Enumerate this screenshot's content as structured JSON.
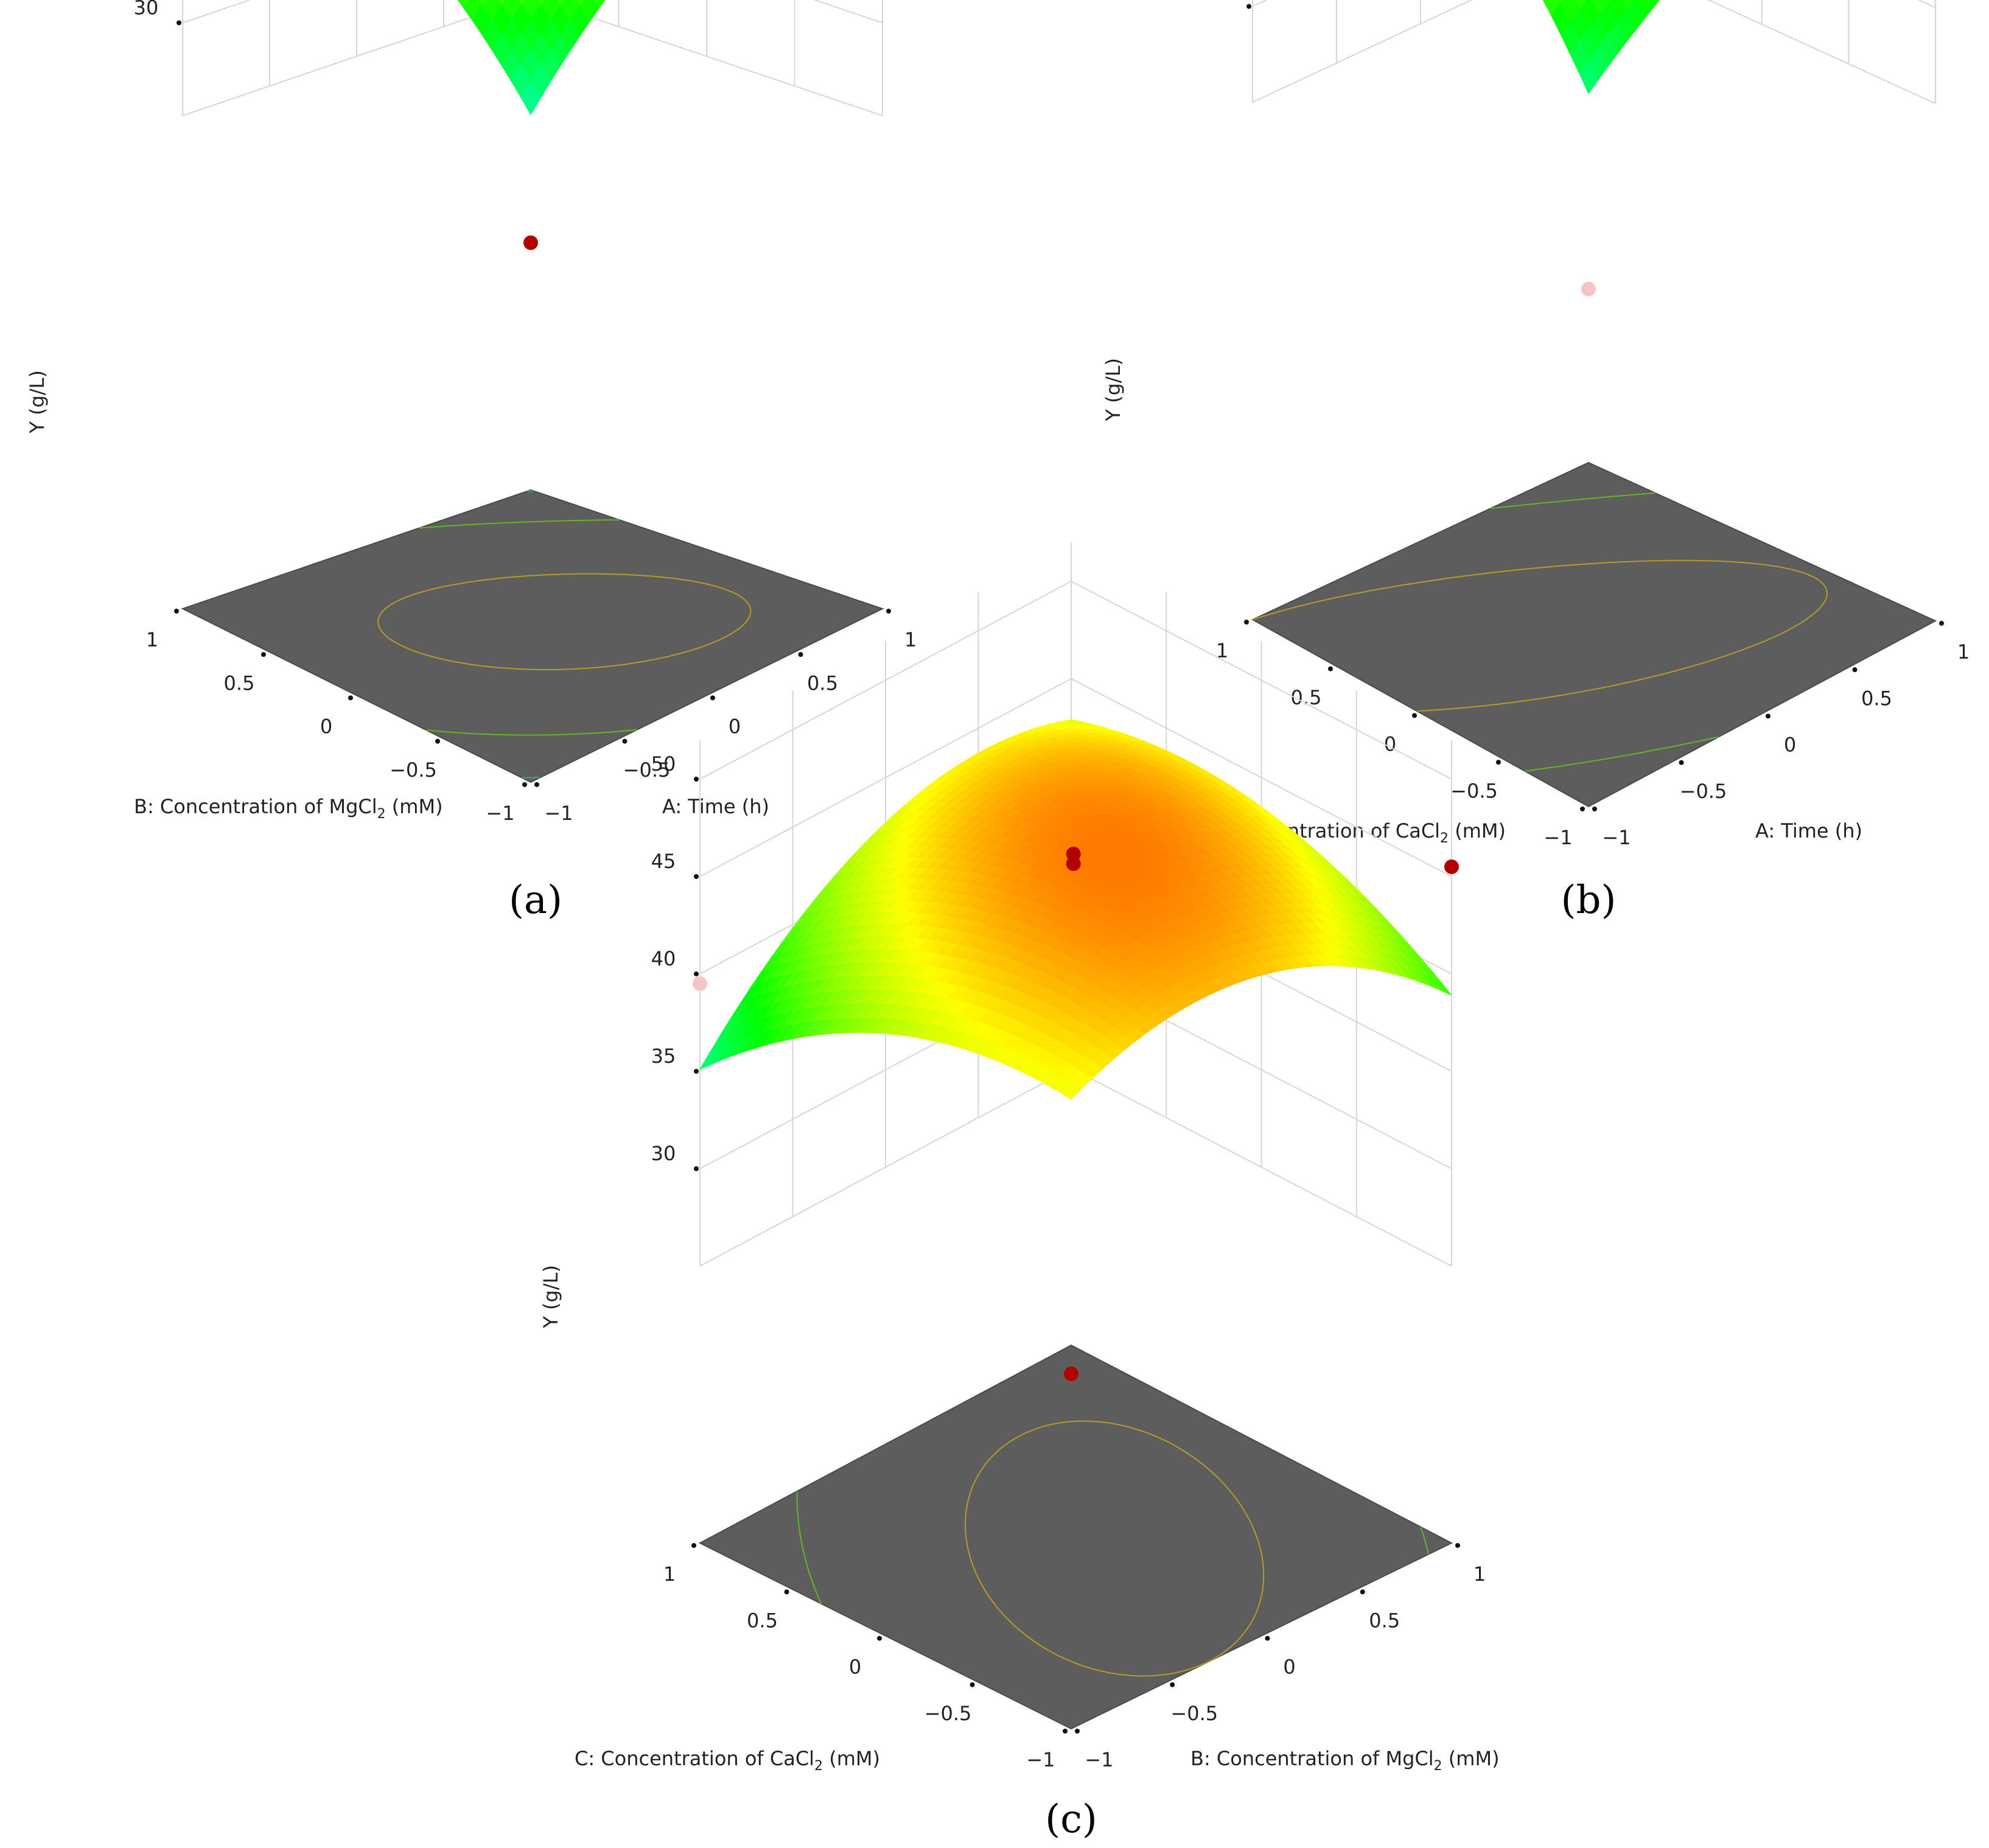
{
  "chart_data": [
    {
      "type": "surface",
      "panel_label": "(a)",
      "x_axis_label": "A: Time (h)",
      "y_axis_label": "B: Concentration of MgCl",
      "y_axis_label_sub": "2",
      "y_axis_label_unit": " (mM)",
      "z_axis_label": "Y (g/L)",
      "z_ticks": [
        "30",
        "35",
        "40",
        "45",
        "50"
      ],
      "x_ticks": [
        "−1",
        "−0.5",
        "0",
        "0.5",
        "1"
      ],
      "y_ticks": [
        "−1",
        "−0.5",
        "0",
        "0.5",
        "1"
      ],
      "zlim": [
        25,
        50
      ],
      "xlim": [
        -1,
        1
      ],
      "ylim": [
        -1,
        1
      ],
      "model": {
        "b0": 46.2,
        "bx": 0.3,
        "by": -0.5,
        "bxy": -3.6,
        "bxx": -4.3,
        "byy": -3.7
      },
      "design_points": [
        {
          "x": 0,
          "y": 0,
          "z": 45.9,
          "color": "#b30000"
        },
        {
          "x": 0,
          "y": 0,
          "z": 45.4,
          "color": "#b30000"
        },
        {
          "x": 1,
          "y": 1,
          "z": 27.5,
          "color": "#b30000"
        },
        {
          "x": 1,
          "y": -1,
          "z": 36.5,
          "color": "#b30000"
        },
        {
          "x": -1,
          "y": 1,
          "z": 39.3,
          "color": "#f6c4c4"
        }
      ]
    },
    {
      "type": "surface",
      "panel_label": "(b)",
      "x_axis_label": "A: Time (h)",
      "y_axis_label": "C: Concentration of CaCl",
      "y_axis_label_sub": "2",
      "y_axis_label_unit": " (mM)",
      "z_axis_label": "Y (g/L)",
      "z_ticks": [
        "30",
        "35",
        "40",
        "45",
        "50"
      ],
      "x_ticks": [
        "−1",
        "−0.5",
        "0",
        "0.5",
        "1"
      ],
      "y_ticks": [
        "−1",
        "−0.5",
        "0",
        "0.5",
        "1"
      ],
      "zlim": [
        25,
        50
      ],
      "xlim": [
        -1,
        1
      ],
      "ylim": [
        -1,
        1
      ],
      "model": {
        "b0": 46.5,
        "bx": -0.6,
        "by": 0.4,
        "bxy": -4.3,
        "bxx": -4.8,
        "byy": -2.0
      },
      "design_points": [
        {
          "x": 0,
          "y": 0,
          "z": 46.0,
          "color": "#b30000"
        },
        {
          "x": 0,
          "y": 0,
          "z": 45.5,
          "color": "#b30000"
        },
        {
          "x": 1,
          "y": 1,
          "z": 25.0,
          "color": "#f6c4c4"
        },
        {
          "x": -1,
          "y": 1,
          "z": 41.2,
          "color": "#b30000"
        },
        {
          "x": 1,
          "y": -1,
          "z": 38.5,
          "color": "#f6c4c4"
        }
      ]
    },
    {
      "type": "surface",
      "panel_label": "(c)",
      "x_axis_label": "B: Concentration of MgCl",
      "x_axis_label_sub": "2",
      "x_axis_label_unit": " (mM)",
      "y_axis_label": "C: Concentration of CaCl",
      "y_axis_label_sub": "2",
      "y_axis_label_unit": " (mM)",
      "z_axis_label": "Y (g/L)",
      "z_ticks": [
        "30",
        "35",
        "40",
        "45",
        "50"
      ],
      "x_ticks": [
        "−1",
        "−0.5",
        "0",
        "0.5",
        "1"
      ],
      "y_ticks": [
        "−1",
        "−0.5",
        "0",
        "0.5",
        "1"
      ],
      "zlim": [
        25,
        50
      ],
      "xlim": [
        -1,
        1
      ],
      "ylim": [
        -1,
        1
      ],
      "model": {
        "b0": 46.3,
        "bx": 1.0,
        "by": -0.9,
        "bxy": 3.0,
        "bxx": -2.6,
        "byy": -3.7
      },
      "design_points": [
        {
          "x": 0,
          "y": 0,
          "z": 46.0,
          "color": "#b30000"
        },
        {
          "x": 0,
          "y": 0,
          "z": 45.5,
          "color": "#b30000"
        },
        {
          "x": 1,
          "y": 1,
          "z": 29.0,
          "color": "#b30000"
        },
        {
          "x": 1,
          "y": -1,
          "z": 45.5,
          "color": "#b30000"
        },
        {
          "x": -1,
          "y": 1,
          "z": 39.5,
          "color": "#f6c4c4"
        }
      ]
    }
  ]
}
